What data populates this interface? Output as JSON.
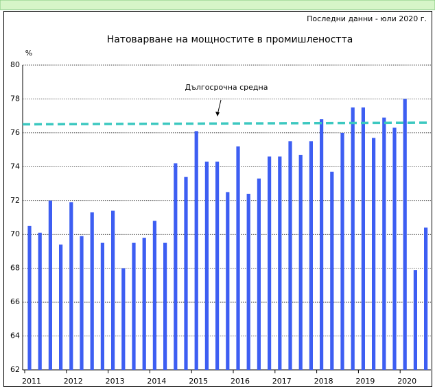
{
  "chart_data": {
    "type": "bar",
    "title": "Натоварване на мощностите в промишлеността",
    "subtitle": "Последни данни - юли 2020 г.",
    "y_unit": "%",
    "categories": [
      "2011",
      null,
      null,
      null,
      "2012",
      null,
      null,
      null,
      "2013",
      null,
      null,
      null,
      "2014",
      null,
      null,
      null,
      "2015",
      null,
      null,
      null,
      "2016",
      null,
      null,
      null,
      "2017",
      null,
      null,
      null,
      "2018",
      null,
      null,
      null,
      "2019",
      null,
      null,
      null,
      "2020",
      null,
      null
    ],
    "values": [
      70.5,
      70.1,
      72.0,
      69.4,
      71.9,
      69.9,
      71.3,
      69.5,
      71.4,
      68.0,
      69.5,
      69.8,
      70.8,
      69.5,
      74.2,
      73.4,
      76.1,
      74.3,
      74.3,
      72.5,
      75.2,
      72.4,
      73.3,
      74.6,
      74.6,
      75.5,
      74.7,
      75.5,
      76.8,
      73.7,
      76.0,
      77.5,
      77.5,
      75.7,
      76.9,
      76.3,
      78.0,
      67.9,
      70.4
    ],
    "color": "#3d5ef2",
    "reference_line": {
      "label": "Дългосрочна средна",
      "values": [
        76.5,
        76.6
      ],
      "color": "#3cc8c0"
    },
    "ylim": [
      62,
      80
    ],
    "yticks": [
      62,
      64,
      66,
      68,
      70,
      72,
      74,
      76,
      78,
      80
    ],
    "grid": true
  }
}
